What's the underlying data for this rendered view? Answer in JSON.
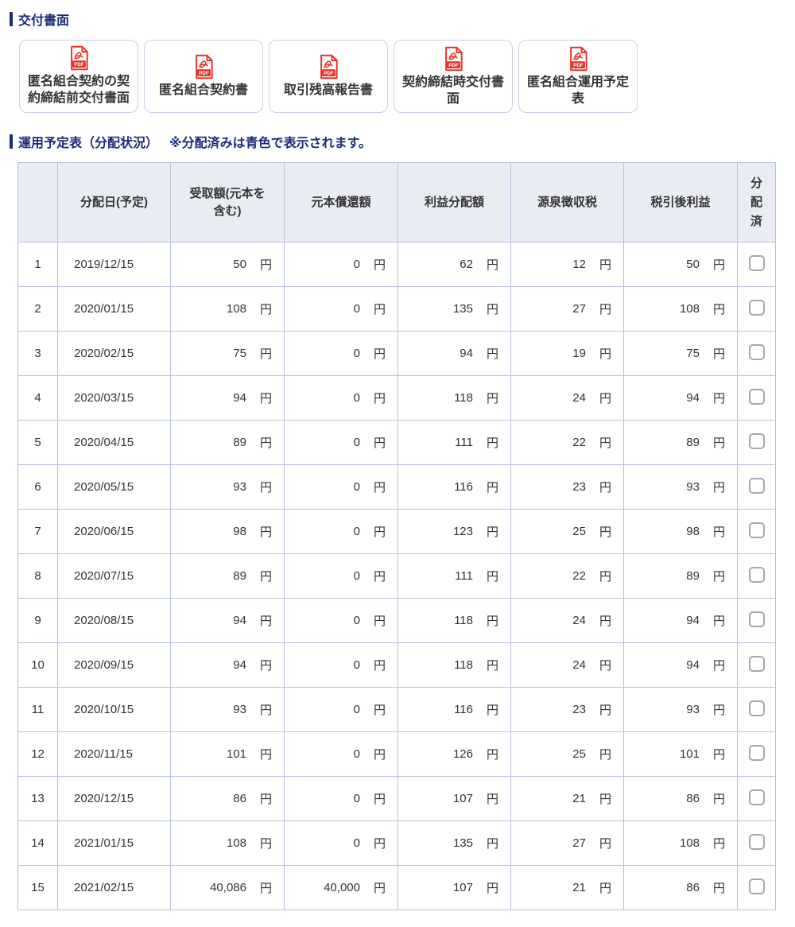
{
  "colors": {
    "navy": "#1b2b7b",
    "pdf_red": "#e5332a",
    "table_border": "#b7c0dc",
    "header_bg": "#eaecf4"
  },
  "documents": {
    "title": "交付書面",
    "icon_label": "PDF",
    "buttons": [
      {
        "label": "匿名組合契約の契約締結前交付書面"
      },
      {
        "label": "匿名組合契約書"
      },
      {
        "label": "取引残高報告書"
      },
      {
        "label": "契約締結時交付書面"
      },
      {
        "label": "匿名組合運用予定表"
      }
    ]
  },
  "schedule": {
    "title": "運用予定表（分配状況）",
    "note": "※分配済みは青色で表示されます。"
  },
  "table": {
    "columns": [
      "",
      "分配日(予定)",
      "受取額(元本を\n含む)",
      "元本償還額",
      "利益分配額",
      "源泉徴収税",
      "税引後利益",
      "分\n配\n済"
    ],
    "unit": "円",
    "rows": [
      {
        "no": "1",
        "date": "2019/12/15",
        "amount_received": "50",
        "principal_repayment": "0",
        "profit_distribution": "62",
        "withholding_tax": "12",
        "after_tax_profit": "50",
        "distributed": false
      },
      {
        "no": "2",
        "date": "2020/01/15",
        "amount_received": "108",
        "principal_repayment": "0",
        "profit_distribution": "135",
        "withholding_tax": "27",
        "after_tax_profit": "108",
        "distributed": false
      },
      {
        "no": "3",
        "date": "2020/02/15",
        "amount_received": "75",
        "principal_repayment": "0",
        "profit_distribution": "94",
        "withholding_tax": "19",
        "after_tax_profit": "75",
        "distributed": false
      },
      {
        "no": "4",
        "date": "2020/03/15",
        "amount_received": "94",
        "principal_repayment": "0",
        "profit_distribution": "118",
        "withholding_tax": "24",
        "after_tax_profit": "94",
        "distributed": false
      },
      {
        "no": "5",
        "date": "2020/04/15",
        "amount_received": "89",
        "principal_repayment": "0",
        "profit_distribution": "111",
        "withholding_tax": "22",
        "after_tax_profit": "89",
        "distributed": false
      },
      {
        "no": "6",
        "date": "2020/05/15",
        "amount_received": "93",
        "principal_repayment": "0",
        "profit_distribution": "116",
        "withholding_tax": "23",
        "after_tax_profit": "93",
        "distributed": false
      },
      {
        "no": "7",
        "date": "2020/06/15",
        "amount_received": "98",
        "principal_repayment": "0",
        "profit_distribution": "123",
        "withholding_tax": "25",
        "after_tax_profit": "98",
        "distributed": false
      },
      {
        "no": "8",
        "date": "2020/07/15",
        "amount_received": "89",
        "principal_repayment": "0",
        "profit_distribution": "111",
        "withholding_tax": "22",
        "after_tax_profit": "89",
        "distributed": false
      },
      {
        "no": "9",
        "date": "2020/08/15",
        "amount_received": "94",
        "principal_repayment": "0",
        "profit_distribution": "118",
        "withholding_tax": "24",
        "after_tax_profit": "94",
        "distributed": false
      },
      {
        "no": "10",
        "date": "2020/09/15",
        "amount_received": "94",
        "principal_repayment": "0",
        "profit_distribution": "118",
        "withholding_tax": "24",
        "after_tax_profit": "94",
        "distributed": false
      },
      {
        "no": "11",
        "date": "2020/10/15",
        "amount_received": "93",
        "principal_repayment": "0",
        "profit_distribution": "116",
        "withholding_tax": "23",
        "after_tax_profit": "93",
        "distributed": false
      },
      {
        "no": "12",
        "date": "2020/11/15",
        "amount_received": "101",
        "principal_repayment": "0",
        "profit_distribution": "126",
        "withholding_tax": "25",
        "after_tax_profit": "101",
        "distributed": false
      },
      {
        "no": "13",
        "date": "2020/12/15",
        "amount_received": "86",
        "principal_repayment": "0",
        "profit_distribution": "107",
        "withholding_tax": "21",
        "after_tax_profit": "86",
        "distributed": false
      },
      {
        "no": "14",
        "date": "2021/01/15",
        "amount_received": "108",
        "principal_repayment": "0",
        "profit_distribution": "135",
        "withholding_tax": "27",
        "after_tax_profit": "108",
        "distributed": false
      },
      {
        "no": "15",
        "date": "2021/02/15",
        "amount_received": "40,086",
        "principal_repayment": "40,000",
        "profit_distribution": "107",
        "withholding_tax": "21",
        "after_tax_profit": "86",
        "distributed": false
      }
    ]
  }
}
